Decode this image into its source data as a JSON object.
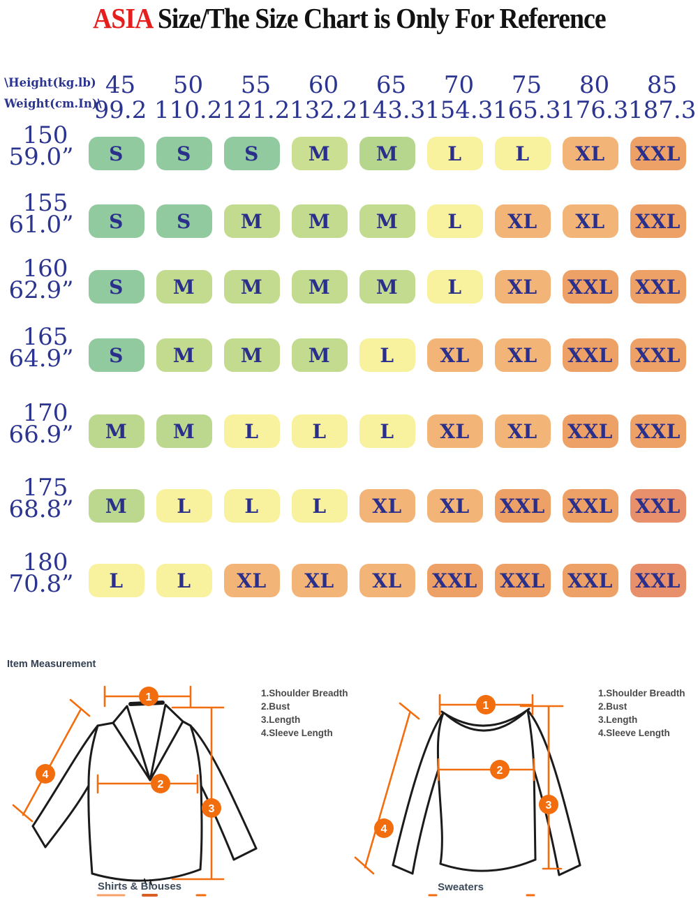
{
  "title": {
    "highlight": "ASIA",
    "rest": " Size/The Size Chart is Only For Reference"
  },
  "size_chart": {
    "corner": {
      "line1": "\\Height(kg.lb)",
      "line2": "Weight(cm.In)\\"
    },
    "text_color": "#2b3590",
    "columns": [
      {
        "kg": "45",
        "lb": "99.2"
      },
      {
        "kg": "50",
        "lb": "110.2"
      },
      {
        "kg": "55",
        "lb": "121.2"
      },
      {
        "kg": "60",
        "lb": "132.2"
      },
      {
        "kg": "65",
        "lb": "143.3"
      },
      {
        "kg": "70",
        "lb": "154.3"
      },
      {
        "kg": "75",
        "lb": "165.3"
      },
      {
        "kg": "80",
        "lb": "176.3"
      },
      {
        "kg": "85",
        "lb": "187.3"
      }
    ],
    "size_colors": {
      "S": "#92caa0",
      "M": "#c2db8f",
      "L": "#f8f19e",
      "XL": "#f3b577",
      "XXL": "#eda166",
      "XXL_deep": "#e8906c"
    },
    "rows": [
      {
        "cm": "150",
        "inch": "59.0”",
        "cells": [
          {
            "label": "S",
            "color": "#92caa0"
          },
          {
            "label": "S",
            "color": "#92caa0"
          },
          {
            "label": "S",
            "color": "#92caa0"
          },
          {
            "label": "M",
            "color": "#cbdf93"
          },
          {
            "label": "M",
            "color": "#b7d68d"
          },
          {
            "label": "L",
            "color": "#f8f19e"
          },
          {
            "label": "L",
            "color": "#f8f19e"
          },
          {
            "label": "XL",
            "color": "#f3b577"
          },
          {
            "label": "XXL",
            "color": "#eda166"
          }
        ]
      },
      {
        "cm": "155",
        "inch": "61.0”",
        "cells": [
          {
            "label": "S",
            "color": "#92caa0"
          },
          {
            "label": "S",
            "color": "#92caa0"
          },
          {
            "label": "M",
            "color": "#c2db8f"
          },
          {
            "label": "M",
            "color": "#c2db8f"
          },
          {
            "label": "M",
            "color": "#c2db8f"
          },
          {
            "label": "L",
            "color": "#f8f19e"
          },
          {
            "label": "XL",
            "color": "#f3b577"
          },
          {
            "label": "XL",
            "color": "#f3b577"
          },
          {
            "label": "XXL",
            "color": "#eda166"
          }
        ]
      },
      {
        "cm": "160",
        "inch": "62.9”",
        "cells": [
          {
            "label": "S",
            "color": "#92caa0"
          },
          {
            "label": "M",
            "color": "#c2db8f"
          },
          {
            "label": "M",
            "color": "#c2db8f"
          },
          {
            "label": "M",
            "color": "#c2db8f"
          },
          {
            "label": "M",
            "color": "#c2db8f"
          },
          {
            "label": "L",
            "color": "#f8f19e"
          },
          {
            "label": "XL",
            "color": "#f3b577"
          },
          {
            "label": "XXL",
            "color": "#eda166"
          },
          {
            "label": "XXL",
            "color": "#eda166"
          }
        ]
      },
      {
        "cm": "165",
        "inch": "64.9”",
        "cells": [
          {
            "label": "S",
            "color": "#92caa0"
          },
          {
            "label": "M",
            "color": "#c2db8f"
          },
          {
            "label": "M",
            "color": "#c2db8f"
          },
          {
            "label": "M",
            "color": "#c2db8f"
          },
          {
            "label": "L",
            "color": "#f8f19e"
          },
          {
            "label": "XL",
            "color": "#f3b577"
          },
          {
            "label": "XL",
            "color": "#f3b577"
          },
          {
            "label": "XXL",
            "color": "#eda166"
          },
          {
            "label": "XXL",
            "color": "#eda166"
          }
        ]
      },
      {
        "cm": "170",
        "inch": "66.9”",
        "cells": [
          {
            "label": "M",
            "color": "#bcd88e"
          },
          {
            "label": "M",
            "color": "#bcd88e"
          },
          {
            "label": "L",
            "color": "#f8f19e"
          },
          {
            "label": "L",
            "color": "#f8f19e"
          },
          {
            "label": "L",
            "color": "#f8f19e"
          },
          {
            "label": "XL",
            "color": "#f3b577"
          },
          {
            "label": "XL",
            "color": "#f3b577"
          },
          {
            "label": "XXL",
            "color": "#eda166"
          },
          {
            "label": "XXL",
            "color": "#eda166"
          }
        ]
      },
      {
        "cm": "175",
        "inch": "68.8”",
        "cells": [
          {
            "label": "M",
            "color": "#bcd88e"
          },
          {
            "label": "L",
            "color": "#f8f19e"
          },
          {
            "label": "L",
            "color": "#f8f19e"
          },
          {
            "label": "L",
            "color": "#f8f19e"
          },
          {
            "label": "XL",
            "color": "#f3b577"
          },
          {
            "label": "XL",
            "color": "#f3b577"
          },
          {
            "label": "XXL",
            "color": "#eda166"
          },
          {
            "label": "XXL",
            "color": "#eda166"
          },
          {
            "label": "XXL",
            "color": "#e8906c"
          }
        ]
      },
      {
        "cm": "180",
        "inch": "70.8”",
        "cells": [
          {
            "label": "L",
            "color": "#f8f19e"
          },
          {
            "label": "L",
            "color": "#f8f19e"
          },
          {
            "label": "XL",
            "color": "#f3b577"
          },
          {
            "label": "XL",
            "color": "#f3b577"
          },
          {
            "label": "XL",
            "color": "#f3b577"
          },
          {
            "label": "XXL",
            "color": "#eda166"
          },
          {
            "label": "XXL",
            "color": "#eda166"
          },
          {
            "label": "XXL",
            "color": "#eda166"
          },
          {
            "label": "XXL",
            "color": "#e8906c"
          }
        ]
      }
    ]
  },
  "measurement": {
    "heading": "Item Measurement",
    "accent_color": "#f26d0e",
    "markers": [
      "1",
      "2",
      "3",
      "4"
    ],
    "legend_shirt": [
      "1.Shoulder Breadth",
      "2.Bust",
      "3.Length",
      "4.Sleeve Length"
    ],
    "legend_sweater": [
      "1.Shoulder Breadth",
      "2.Bust",
      "3.Length",
      "4.Sleeve Length"
    ],
    "captions": {
      "shirt": "Shirts & Blouses",
      "sweater": "Sweaters"
    }
  }
}
